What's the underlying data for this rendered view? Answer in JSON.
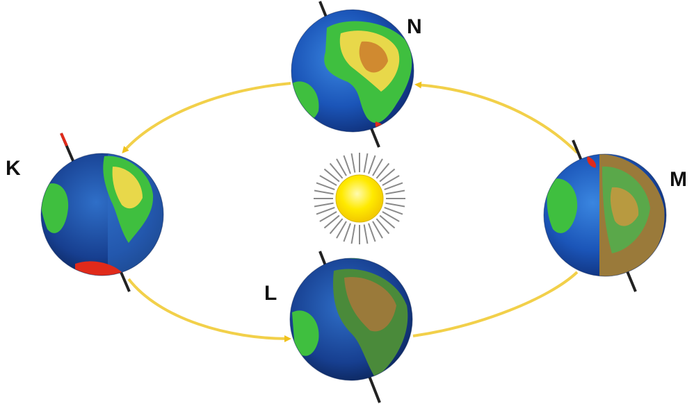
{
  "labels": {
    "n": "N",
    "k": "K",
    "m": "M",
    "l": "L"
  },
  "colors": {
    "orbit": "#f2d04a",
    "arrow": "#f0c21c",
    "sun_core": "#ffea00",
    "sun_rays": "#8a8a8a",
    "ocean": "#1b55b8",
    "land_green": "#3fbf3f",
    "land_yellow": "#e8d84a",
    "land_brown": "#9a7a3a",
    "ice_red": "#e02a1a",
    "axis": "#222222"
  },
  "icons": {
    "sun": "sun-icon",
    "globe": "earth-globe-icon",
    "arrow": "orbit-arrow-icon"
  }
}
